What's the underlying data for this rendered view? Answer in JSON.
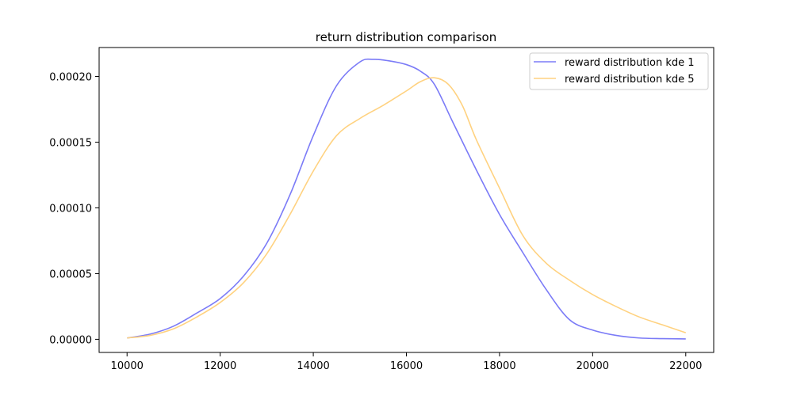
{
  "chart_data": {
    "type": "line",
    "title": "return distribution comparison",
    "xlabel": "",
    "ylabel": "",
    "xlim": [
      9400,
      22600
    ],
    "ylim": [
      -1e-05,
      0.000222
    ],
    "x_ticks": [
      10000,
      12000,
      14000,
      16000,
      18000,
      20000,
      22000
    ],
    "x_tick_labels": [
      "10000",
      "12000",
      "14000",
      "16000",
      "18000",
      "20000",
      "22000"
    ],
    "y_ticks": [
      0.0,
      5e-05,
      0.0001,
      0.00015,
      0.0002
    ],
    "y_tick_labels": [
      "0.00000",
      "0.00005",
      "0.00010",
      "0.00015",
      "0.00020"
    ],
    "grid": false,
    "legend_position": "top-right",
    "series": [
      {
        "name": "reward distribution kde 1",
        "color": "#7b7bf7",
        "x": [
          10000,
          10500,
          11000,
          11500,
          12000,
          12500,
          13000,
          13500,
          14000,
          14500,
          15000,
          15300,
          15600,
          16000,
          16300,
          16600,
          17000,
          17500,
          18000,
          18500,
          19000,
          19500,
          20000,
          20500,
          21000,
          21500,
          22000
        ],
        "y": [
          1e-06,
          4e-06,
          1e-05,
          2e-05,
          3.1e-05,
          4.8e-05,
          7.3e-05,
          0.00011,
          0.000155,
          0.000193,
          0.000211,
          0.000213,
          0.000212,
          0.000209,
          0.000204,
          0.000194,
          0.000165,
          0.000129,
          9.5e-05,
          6.6e-05,
          3.8e-05,
          1.5e-05,
          7e-06,
          3e-06,
          1e-06,
          5e-07,
          3e-07
        ]
      },
      {
        "name": "reward distribution kde 5",
        "color": "#ffd280",
        "x": [
          10000,
          10500,
          11000,
          11500,
          12000,
          12500,
          13000,
          13500,
          14000,
          14500,
          15000,
          15500,
          16000,
          16300,
          16600,
          16900,
          17200,
          17500,
          18000,
          18500,
          19000,
          19500,
          20000,
          20500,
          21000,
          21500,
          22000
        ],
        "y": [
          1e-06,
          3e-06,
          8e-06,
          1.7e-05,
          2.8e-05,
          4.3e-05,
          6.5e-05,
          9.5e-05,
          0.000128,
          0.000155,
          0.000168,
          0.000178,
          0.000189,
          0.000196,
          0.000199,
          0.000194,
          0.000178,
          0.000152,
          0.000115,
          7.9e-05,
          5.8e-05,
          4.5e-05,
          3.4e-05,
          2.5e-05,
          1.7e-05,
          1.1e-05,
          5e-06
        ]
      }
    ]
  }
}
